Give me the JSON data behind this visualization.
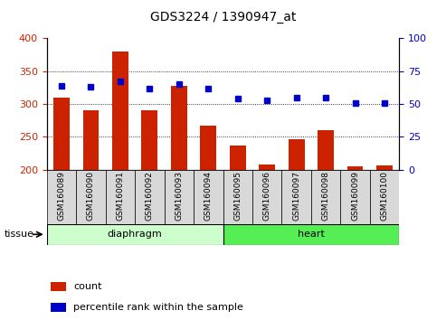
{
  "title": "GDS3224 / 1390947_at",
  "samples": [
    "GSM160089",
    "GSM160090",
    "GSM160091",
    "GSM160092",
    "GSM160093",
    "GSM160094",
    "GSM160095",
    "GSM160096",
    "GSM160097",
    "GSM160098",
    "GSM160099",
    "GSM160100"
  ],
  "counts": [
    310,
    291,
    380,
    291,
    327,
    267,
    236,
    208,
    246,
    260,
    205,
    206
  ],
  "percentiles": [
    64,
    63,
    67,
    62,
    65,
    62,
    54,
    53,
    55,
    55,
    51,
    51
  ],
  "bar_bottom": 200,
  "ylim_left": [
    200,
    400
  ],
  "ylim_right": [
    0,
    100
  ],
  "yticks_left": [
    200,
    250,
    300,
    350,
    400
  ],
  "yticks_right": [
    0,
    25,
    50,
    75,
    100
  ],
  "bar_color": "#cc2200",
  "dot_color": "#0000cc",
  "grid_color": "#000000",
  "diaphragm_color_light": "#ccffcc",
  "diaphragm_color_dark": "#44dd44",
  "heart_color_light": "#55ee55",
  "heart_color_dark": "#22cc22",
  "tissue_label": "tissue",
  "legend_count": "count",
  "legend_pct": "percentile rank within the sample",
  "bar_width": 0.55,
  "title_fontsize": 10,
  "axis_tick_fontsize": 8,
  "sample_label_fontsize": 6.5,
  "tissue_label_fontsize": 8,
  "legend_fontsize": 8
}
